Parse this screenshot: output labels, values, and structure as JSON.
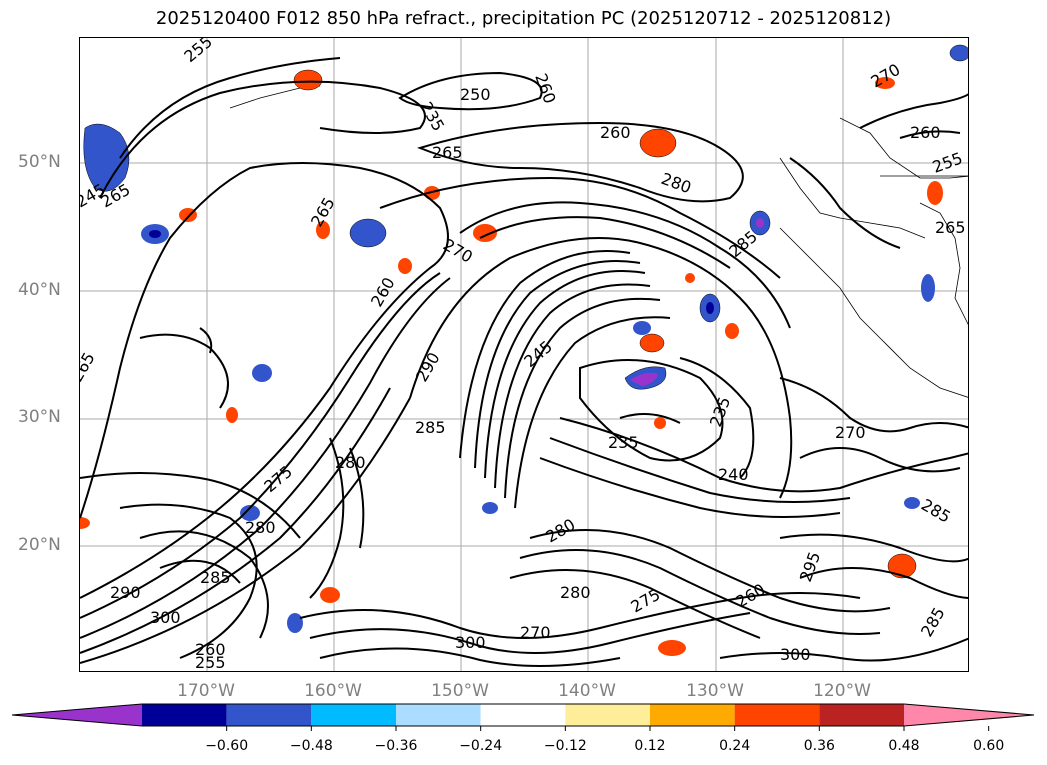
{
  "title": "2025120400 F012 850 hPa refract., precipitation PC (2025120712 - 2025120812)",
  "lat_labels": [
    "50°N",
    "40°N",
    "30°N",
    "20°N"
  ],
  "lon_labels": [
    "170°W",
    "160°W",
    "150°W",
    "140°W",
    "130°W",
    "120°W"
  ],
  "contour_labels": [
    "255",
    "250",
    "235",
    "260",
    "265",
    "260",
    "265",
    "280",
    "270",
    "285",
    "245",
    "265",
    "270",
    "260",
    "255",
    "265",
    "265",
    "260",
    "290",
    "245",
    "285",
    "235",
    "235",
    "240",
    "270",
    "285",
    "280",
    "275",
    "280",
    "280",
    "275",
    "285",
    "295",
    "300",
    "260",
    "300",
    "285",
    "290",
    "300",
    "255",
    "260",
    "270",
    "280"
  ],
  "colorbar": {
    "ticks": [
      "−0.60",
      "−0.48",
      "−0.36",
      "−0.24",
      "−0.12",
      "0.12",
      "0.24",
      "0.36",
      "0.48",
      "0.60"
    ],
    "colors": [
      "#9933cc",
      "#000099",
      "#3355cc",
      "#00bbff",
      "#aaddff",
      "#ffffff",
      "#ffee99",
      "#ffaa00",
      "#ff4400",
      "#bb2222",
      "#ff88aa"
    ],
    "extend": "both"
  },
  "legend_label": "precipitation PC"
}
